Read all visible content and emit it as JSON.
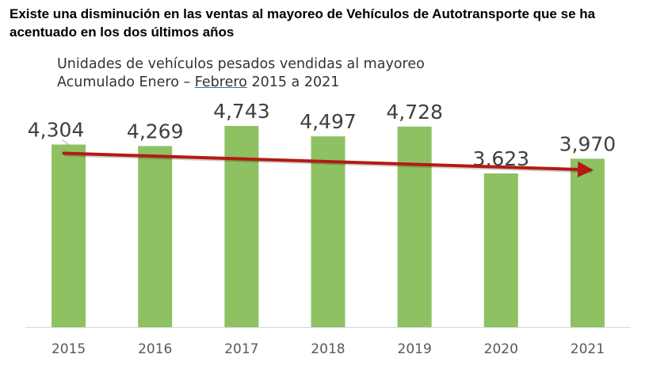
{
  "headline": "Existe una disminución en las ventas al mayoreo de Vehículos de Autotransporte que se ha acentuado en los dos últimos años",
  "chart_data": {
    "type": "bar",
    "title_line1": "Unidades de vehículos pesados vendidas al mayoreo",
    "title_line2_prefix": "Acumulado Enero – ",
    "title_line2_underlined": "Febrero",
    "title_line2_suffix": " 2015 a 2021",
    "categories": [
      "2015",
      "2016",
      "2017",
      "2018",
      "2019",
      "2020",
      "2021"
    ],
    "values": [
      4304,
      4269,
      4743,
      4497,
      4728,
      3623,
      3970
    ],
    "data_labels": [
      "4,304",
      "4,269",
      "4,743",
      "4,497",
      "4,728",
      "3,623",
      "3,970"
    ],
    "ylim": [
      0,
      4743
    ],
    "xlabel": "",
    "ylabel": "",
    "grid": false,
    "trend_arrow": {
      "from_category": "2015",
      "to_category": "2021"
    },
    "colors": {
      "bar": "#8dc162",
      "arrow": "#b31b12",
      "label": "#404040",
      "axis": "#d9d9d9"
    }
  }
}
